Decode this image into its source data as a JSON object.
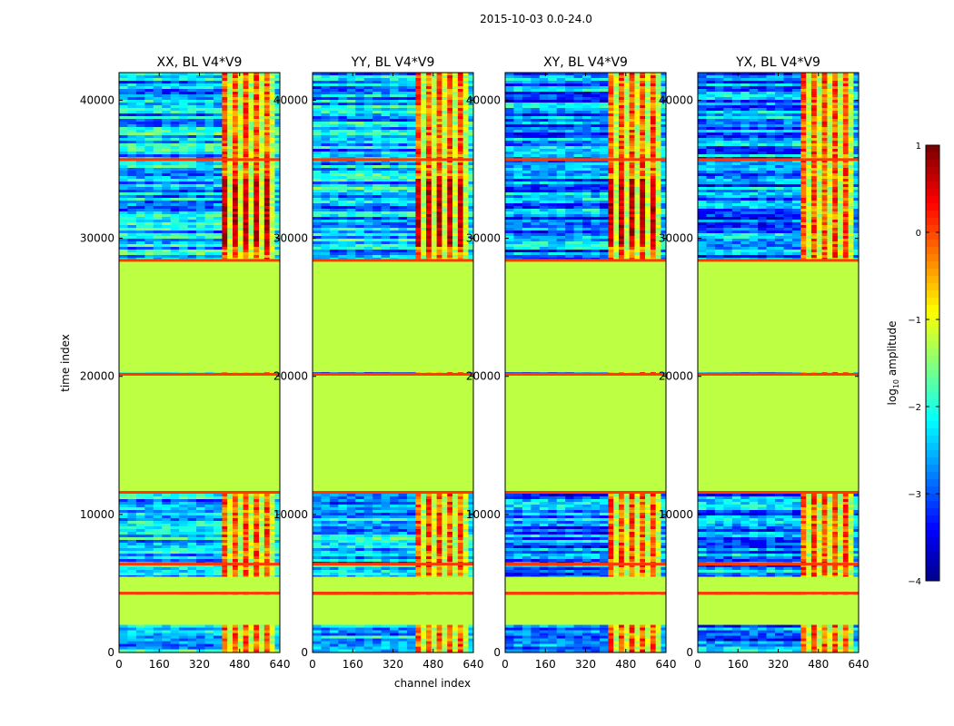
{
  "suptitle": "2015-10-03 0.0-24.0",
  "chart_data": {
    "type": "heatmap",
    "panels": [
      {
        "title": "XX, BL V4*V9"
      },
      {
        "title": "YY, BL V4*V9"
      },
      {
        "title": "XY, BL V4*V9"
      },
      {
        "title": "YX, BL V4*V9"
      }
    ],
    "xlabel": "channel index",
    "ylabel": "time index",
    "xlim": [
      0,
      640
    ],
    "ylim": [
      0,
      42000
    ],
    "xticks": [
      "0",
      "160",
      "320",
      "480",
      "640"
    ],
    "yticks": [
      "0",
      "10000",
      "20000",
      "30000",
      "40000"
    ],
    "ytick_values": [
      0,
      10000,
      20000,
      30000,
      40000
    ],
    "colorbar": {
      "label_main": "log",
      "label_sub": "10",
      "label_rest": " amplitude",
      "ticks": [
        "1",
        "0",
        "−1",
        "−2",
        "−3",
        "−4"
      ],
      "tick_values": [
        1,
        0,
        -1,
        -2,
        -3,
        -4
      ],
      "range": [
        -4,
        1
      ],
      "colormap": "jet"
    },
    "flagged_value": -1.2,
    "time_segments": [
      {
        "from": 0,
        "to": 2000,
        "state": "data"
      },
      {
        "from": 2000,
        "to": 4200,
        "state": "flagged"
      },
      {
        "from": 4200,
        "to": 4400,
        "state": "data"
      },
      {
        "from": 4400,
        "to": 5500,
        "state": "flagged"
      },
      {
        "from": 5500,
        "to": 11700,
        "state": "data"
      },
      {
        "from": 11700,
        "to": 20100,
        "state": "flagged"
      },
      {
        "from": 20100,
        "to": 20300,
        "state": "data"
      },
      {
        "from": 20300,
        "to": 28400,
        "state": "flagged"
      },
      {
        "from": 28400,
        "to": 42000,
        "state": "data"
      }
    ],
    "rfi_channel_range": [
      410,
      620
    ]
  }
}
